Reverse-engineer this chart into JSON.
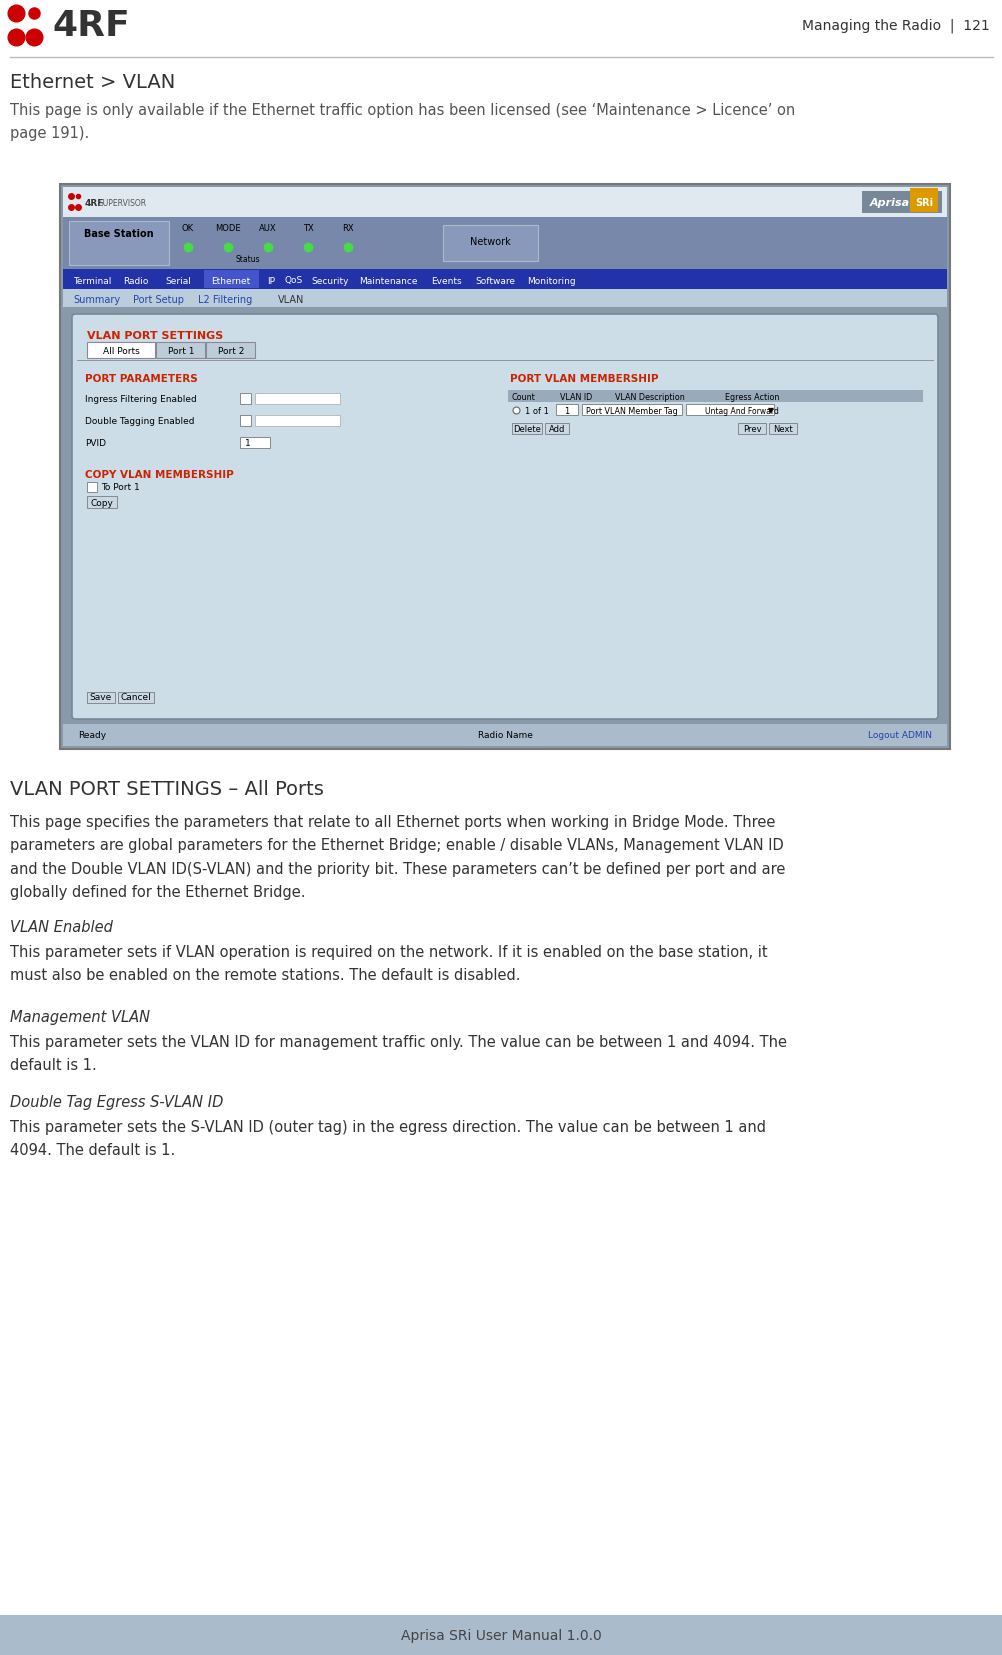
{
  "page_title_right": "Managing the Radio  |  121",
  "section_title": "Ethernet > VLAN",
  "intro_text": "This page is only available if the Ethernet traffic option has been licensed (see ‘Maintenance > Licence’ on\npage 191).",
  "section2_title": "VLAN PORT SETTINGS – All Ports",
  "section2_body": "This page specifies the parameters that relate to all Ethernet ports when working in Bridge Mode. Three\nparameters are global parameters for the Ethernet Bridge; enable / disable VLANs, Management VLAN ID\nand the Double VLAN ID(S-VLAN) and the priority bit. These parameters can’t be defined per port and are\nglobally defined for the Ethernet Bridge.",
  "sub1_title": "VLAN Enabled",
  "sub1_body": "This parameter sets if VLAN operation is required on the network. If it is enabled on the base station, it\nmust also be enabled on the remote stations. The default is disabled.",
  "sub2_title": "Management VLAN",
  "sub2_body": "This parameter sets the VLAN ID for management traffic only. The value can be between 1 and 4094. The\ndefault is 1.",
  "sub3_title": "Double Tag Egress S-VLAN ID",
  "sub3_body": "This parameter sets the S-VLAN ID (outer tag) in the egress direction. The value can be between 1 and\n4094. The default is 1.",
  "footer_text": "Aprisa SRi User Manual 1.0.0",
  "bg_color": "#ffffff",
  "header_line_color": "#cccccc",
  "footer_bar_color": "#aabbcc",
  "title_color": "#000000",
  "section_title_color": "#333333",
  "body_text_color": "#333333",
  "sub_title_color": "#444444",
  "intro_text_color": "#555555",
  "logo_red": "#cc0000",
  "nav_blue": "#2244aa",
  "ui_bg": "#8899aa",
  "ui_panel_bg": "#cfd8dc",
  "ui_inner_bg": "#dde4ea",
  "ui_red_text": "#cc2200",
  "ui_header_bg": "#2244aa",
  "ui_content_bg": "#8899aa",
  "ui_white_panel": "#cce0ee"
}
